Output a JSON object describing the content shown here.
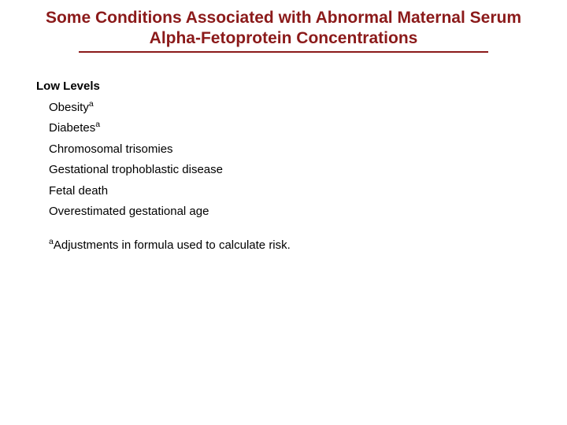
{
  "colors": {
    "title_color": "#8b1a1a",
    "underline_color": "#8b1a1a",
    "text_color": "#000000",
    "background": "#ffffff"
  },
  "typography": {
    "title_fontsize": 21,
    "heading_fontsize": 15,
    "item_fontsize": 15,
    "footnote_fontsize": 15
  },
  "title": {
    "line1": "Some Conditions Associated with Abnormal Maternal Serum",
    "line2": "Alpha-Fetoprotein Concentrations"
  },
  "section": {
    "heading": "Low Levels",
    "items": [
      {
        "text": "Obesity",
        "sup": "a"
      },
      {
        "text": "Diabetes",
        "sup": "a"
      },
      {
        "text": "Chromosomal trisomies",
        "sup": ""
      },
      {
        "text": "Gestational trophoblastic disease",
        "sup": ""
      },
      {
        "text": "Fetal death",
        "sup": ""
      },
      {
        "text": "Overestimated gestational age",
        "sup": ""
      }
    ]
  },
  "footnote": {
    "sup": "a",
    "text": "Adjustments in formula used to calculate risk."
  }
}
